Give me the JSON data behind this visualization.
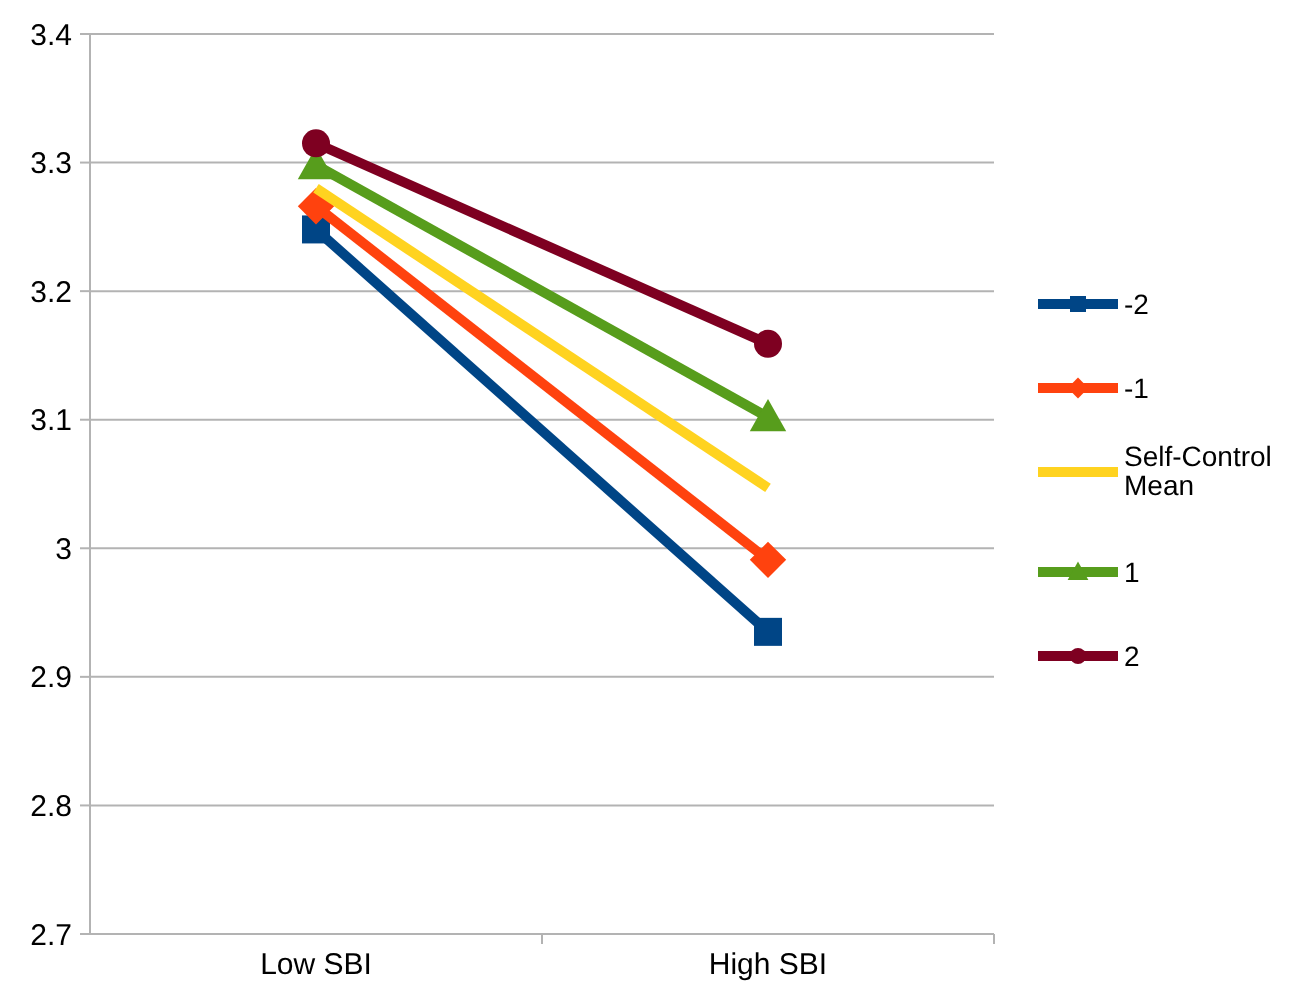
{
  "chart_data": {
    "type": "line",
    "categories": [
      "Low SBI",
      "High SBI"
    ],
    "series": [
      {
        "name": "-2",
        "color": "#004586",
        "values": [
          3.248,
          2.935
        ],
        "marker": "square"
      },
      {
        "name": "-1",
        "color": "#ff420e",
        "values": [
          3.266,
          2.991
        ],
        "marker": "diamond"
      },
      {
        "name": "Self-Control Mean",
        "color": "#ffd320",
        "values": [
          3.28,
          3.047
        ],
        "marker": "none"
      },
      {
        "name": "1",
        "color": "#579d1c",
        "values": [
          3.298,
          3.102
        ],
        "marker": "triangle"
      },
      {
        "name": "2",
        "color": "#7e0021",
        "values": [
          3.315,
          3.159
        ],
        "marker": "circle"
      }
    ],
    "ylim": [
      2.7,
      3.4
    ],
    "yticks": [
      {
        "value": 2.7,
        "label": "2.7"
      },
      {
        "value": 2.8,
        "label": "2.8"
      },
      {
        "value": 2.9,
        "label": "2.9"
      },
      {
        "value": 3,
        "label": "3"
      },
      {
        "value": 3.1,
        "label": "3.1"
      },
      {
        "value": 3.2,
        "label": "3.2"
      },
      {
        "value": 3.3,
        "label": "3.3"
      },
      {
        "value": 3.4,
        "label": "3.4"
      }
    ],
    "grid": "y",
    "legend": "right",
    "line_style": "solid"
  }
}
